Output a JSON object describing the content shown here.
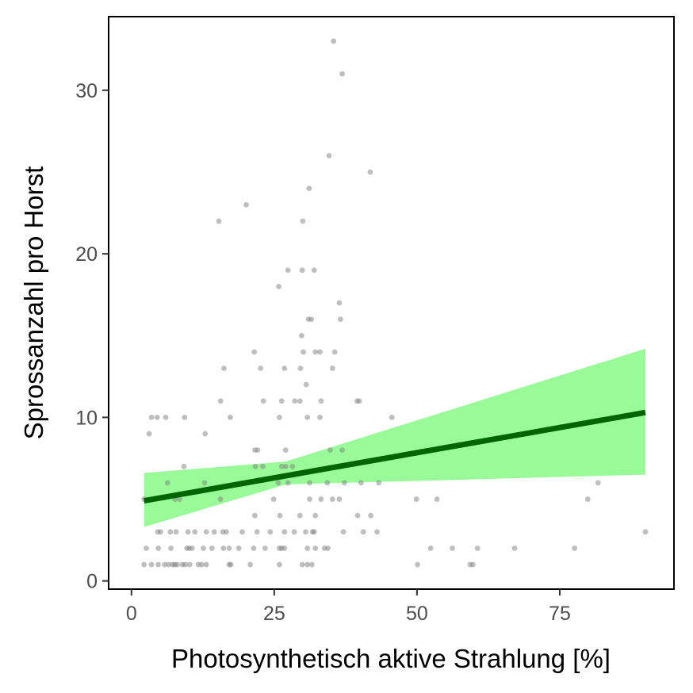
{
  "chart_data": {
    "type": "scatter",
    "xlabel": "Photosynthetisch aktive Strahlung [%]",
    "ylabel": "Sprossanzahl pro Horst",
    "xlim": [
      -4,
      95
    ],
    "ylim": [
      -0.5,
      34.5
    ],
    "x_ticks": [
      0,
      25,
      50,
      75
    ],
    "y_ticks": [
      0,
      10,
      20,
      30
    ],
    "grid": false,
    "colors": {
      "points": "#808080",
      "fit_line": "#006400",
      "confidence_band": "#98FB98",
      "axis": "#000000"
    },
    "points": [
      [
        35.4,
        33
      ],
      [
        36.9,
        31
      ],
      [
        34.6,
        26
      ],
      [
        41.8,
        25
      ],
      [
        31.1,
        24
      ],
      [
        20.1,
        23
      ],
      [
        15.3,
        22
      ],
      [
        30.0,
        22
      ],
      [
        27.4,
        19
      ],
      [
        29.9,
        19
      ],
      [
        32.0,
        19
      ],
      [
        25.8,
        18
      ],
      [
        36.4,
        17
      ],
      [
        31.0,
        16
      ],
      [
        31.5,
        16
      ],
      [
        36.6,
        16
      ],
      [
        29.8,
        15
      ],
      [
        21.5,
        14
      ],
      [
        30.1,
        14
      ],
      [
        32.2,
        14
      ],
      [
        33.0,
        14
      ],
      [
        35.6,
        14
      ],
      [
        16.2,
        13
      ],
      [
        22.6,
        13
      ],
      [
        26.8,
        13
      ],
      [
        29.6,
        13
      ],
      [
        35.2,
        13
      ],
      [
        30.6,
        12
      ],
      [
        15.6,
        11
      ],
      [
        23.1,
        11
      ],
      [
        26.3,
        11
      ],
      [
        28.6,
        11
      ],
      [
        29.5,
        11
      ],
      [
        33.2,
        11
      ],
      [
        39.5,
        11
      ],
      [
        39.9,
        11
      ],
      [
        3.5,
        10
      ],
      [
        4.5,
        10
      ],
      [
        6.0,
        10
      ],
      [
        9.3,
        10
      ],
      [
        17.3,
        10
      ],
      [
        25.9,
        10
      ],
      [
        30.8,
        10
      ],
      [
        33.0,
        10
      ],
      [
        45.6,
        10
      ],
      [
        3.1,
        9
      ],
      [
        12.9,
        9
      ],
      [
        21.6,
        8
      ],
      [
        22.1,
        8
      ],
      [
        27.0,
        8
      ],
      [
        34.8,
        8
      ],
      [
        36.9,
        8
      ],
      [
        9.2,
        7
      ],
      [
        21.7,
        7
      ],
      [
        23.0,
        7
      ],
      [
        26.3,
        7
      ],
      [
        27.0,
        7
      ],
      [
        28.2,
        7
      ],
      [
        6.3,
        6
      ],
      [
        12.8,
        6
      ],
      [
        25.7,
        6
      ],
      [
        27.4,
        6
      ],
      [
        31.2,
        6
      ],
      [
        34.3,
        6
      ],
      [
        37.3,
        6
      ],
      [
        40.2,
        6
      ],
      [
        43.3,
        6
      ],
      [
        81.7,
        6
      ],
      [
        2.2,
        5
      ],
      [
        7.6,
        5
      ],
      [
        8.4,
        5
      ],
      [
        15.6,
        5
      ],
      [
        24.9,
        5
      ],
      [
        31.2,
        5
      ],
      [
        33.2,
        5
      ],
      [
        35.2,
        5
      ],
      [
        36.4,
        5
      ],
      [
        49.9,
        5
      ],
      [
        53.5,
        5
      ],
      [
        79.9,
        5
      ],
      [
        21.6,
        4
      ],
      [
        26.0,
        4
      ],
      [
        29.5,
        4
      ],
      [
        32.2,
        4
      ],
      [
        39.6,
        4
      ],
      [
        41.9,
        4
      ],
      [
        4.6,
        3
      ],
      [
        5.1,
        3
      ],
      [
        6.8,
        3
      ],
      [
        7.8,
        3
      ],
      [
        9.9,
        3
      ],
      [
        11.1,
        3
      ],
      [
        13.1,
        3
      ],
      [
        14.5,
        3
      ],
      [
        16.0,
        3
      ],
      [
        16.6,
        3
      ],
      [
        19.4,
        3
      ],
      [
        22.0,
        3
      ],
      [
        24.3,
        3
      ],
      [
        26.8,
        3
      ],
      [
        28.5,
        3
      ],
      [
        30.5,
        3
      ],
      [
        31.7,
        3
      ],
      [
        32.0,
        3
      ],
      [
        37.1,
        3
      ],
      [
        40.6,
        3
      ],
      [
        43.0,
        3
      ],
      [
        90.0,
        3
      ],
      [
        2.6,
        2
      ],
      [
        4.7,
        2
      ],
      [
        6.9,
        2
      ],
      [
        9.7,
        2
      ],
      [
        10.1,
        2
      ],
      [
        10.6,
        2
      ],
      [
        12.6,
        2
      ],
      [
        14.1,
        2
      ],
      [
        16.1,
        2
      ],
      [
        17.1,
        2
      ],
      [
        18.8,
        2
      ],
      [
        21.4,
        2
      ],
      [
        23.4,
        2
      ],
      [
        25.9,
        2
      ],
      [
        26.3,
        2
      ],
      [
        26.8,
        2
      ],
      [
        30.8,
        2
      ],
      [
        32.2,
        2
      ],
      [
        33.8,
        2
      ],
      [
        34.4,
        2
      ],
      [
        52.4,
        2
      ],
      [
        56.2,
        2
      ],
      [
        60.6,
        2
      ],
      [
        67.1,
        2
      ],
      [
        77.6,
        2
      ],
      [
        2.2,
        1
      ],
      [
        3.5,
        1
      ],
      [
        4.7,
        1
      ],
      [
        5.8,
        1
      ],
      [
        6.5,
        1
      ],
      [
        7.2,
        1
      ],
      [
        7.6,
        1
      ],
      [
        8.0,
        1
      ],
      [
        8.9,
        1
      ],
      [
        9.4,
        1
      ],
      [
        10.2,
        1
      ],
      [
        11.7,
        1
      ],
      [
        12.3,
        1
      ],
      [
        13.1,
        1
      ],
      [
        17.1,
        1
      ],
      [
        17.4,
        1
      ],
      [
        20.8,
        1
      ],
      [
        25.9,
        1
      ],
      [
        29.9,
        1
      ],
      [
        30.8,
        1
      ],
      [
        31.6,
        1
      ],
      [
        50.1,
        1
      ],
      [
        59.3,
        1
      ],
      [
        59.8,
        1
      ]
    ],
    "fit_line": {
      "x": [
        2.2,
        90.0
      ],
      "y": [
        4.9,
        10.3
      ]
    },
    "confidence_band": {
      "x": [
        2.2,
        27.0,
        90.0
      ],
      "lower": [
        3.3,
        5.9,
        6.5
      ],
      "upper": [
        6.6,
        7.3,
        14.2
      ]
    }
  }
}
